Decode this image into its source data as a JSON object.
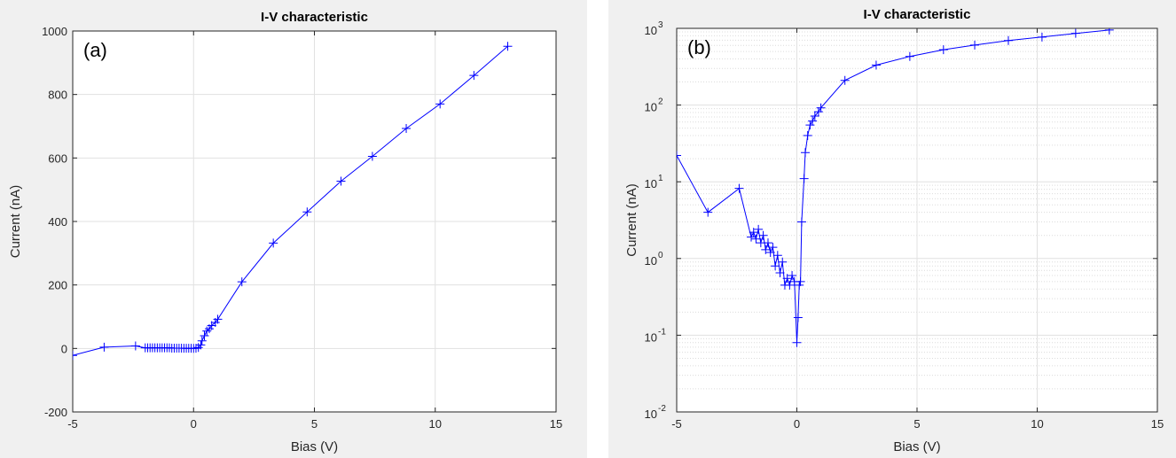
{
  "chart_data": [
    {
      "type": "line",
      "panel_label": "(a)",
      "title": "I-V characteristic",
      "xlabel": "Bias (V)",
      "ylabel": "Current (nA)",
      "xlim": [
        -5,
        15
      ],
      "ylim": [
        -200,
        1000
      ],
      "yscale": "linear",
      "xticks": [
        "-5",
        "0",
        "5",
        "10",
        "15"
      ],
      "yticks": [
        "-200",
        "0",
        "200",
        "400",
        "600",
        "800",
        "1000"
      ],
      "grid": true,
      "marker": "+",
      "color": "#0000ff",
      "series": [
        {
          "x": [
            -5,
            -3.7,
            -2.4,
            -2.0,
            -1.9,
            -1.8,
            -1.7,
            -1.6,
            -1.5,
            -1.4,
            -1.3,
            -1.2,
            -1.1,
            -1.0,
            -0.9,
            -0.8,
            -0.7,
            -0.6,
            -0.5,
            -0.4,
            -0.3,
            -0.2,
            -0.1,
            0.0,
            0.1,
            0.2,
            0.3,
            0.35,
            0.45,
            0.55,
            0.65,
            0.75,
            0.9,
            1.0,
            2.0,
            3.3,
            4.7,
            6.1,
            7.4,
            8.8,
            10.2,
            11.6,
            13.0
          ],
          "y": [
            -22,
            4,
            8,
            2,
            2,
            2,
            2,
            2,
            2,
            2,
            2,
            2,
            2,
            2,
            1,
            1,
            1,
            1,
            1,
            0.5,
            0.5,
            0.5,
            0.5,
            0.1,
            0.5,
            3,
            11,
            24,
            40,
            55,
            62,
            72,
            82,
            92,
            210,
            332,
            430,
            527,
            605,
            693,
            770,
            860,
            952
          ]
        }
      ]
    },
    {
      "type": "line",
      "panel_label": "(b)",
      "title": "I-V characteristic",
      "xlabel": "Bias (V)",
      "ylabel": "Current (nA)",
      "xlim": [
        -5,
        15
      ],
      "ylim": [
        0.01,
        1000
      ],
      "yscale": "log",
      "xticks": [
        "-5",
        "0",
        "5",
        "10",
        "15"
      ],
      "yticks": [
        {
          "base": "10",
          "exp": "-2"
        },
        {
          "base": "10",
          "exp": "-1"
        },
        {
          "base": "10",
          "exp": "0"
        },
        {
          "base": "10",
          "exp": "1"
        },
        {
          "base": "10",
          "exp": "2"
        },
        {
          "base": "10",
          "exp": "3"
        }
      ],
      "grid": true,
      "minor_grid": true,
      "marker": "+",
      "color": "#0000ff",
      "series": [
        {
          "x": [
            -5,
            -3.7,
            -2.4,
            -1.9,
            -1.8,
            -1.7,
            -1.6,
            -1.5,
            -1.4,
            -1.3,
            -1.2,
            -1.1,
            -1.0,
            -0.9,
            -0.8,
            -0.7,
            -0.6,
            -0.5,
            -0.4,
            -0.3,
            -0.2,
            -0.1,
            0.0,
            0.05,
            0.1,
            0.15,
            0.2,
            0.3,
            0.35,
            0.45,
            0.55,
            0.65,
            0.75,
            0.9,
            1.0,
            2.0,
            3.3,
            4.7,
            6.1,
            7.4,
            8.8,
            10.2,
            11.6,
            13.0
          ],
          "y": [
            22,
            4,
            8.2,
            1.9,
            2.2,
            1.8,
            2.4,
            1.6,
            2.0,
            1.3,
            1.6,
            1.2,
            1.4,
            0.8,
            1.1,
            0.65,
            0.9,
            0.45,
            0.55,
            0.45,
            0.6,
            0.5,
            0.08,
            0.17,
            0.45,
            0.5,
            3,
            11,
            24,
            40,
            55,
            62,
            72,
            82,
            92,
            210,
            332,
            430,
            527,
            605,
            693,
            770,
            860,
            952
          ]
        }
      ]
    }
  ]
}
